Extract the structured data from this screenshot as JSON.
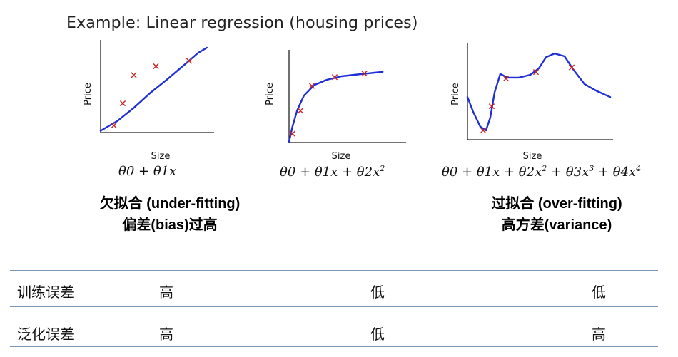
{
  "title": "Example: Linear regression (housing prices)",
  "chart_data": [
    {
      "type": "scatter",
      "fit": "linear",
      "xlabel": "Size",
      "ylabel": "Price",
      "xlim": [
        0,
        10
      ],
      "ylim": [
        0,
        10
      ],
      "points": [
        [
          1.2,
          0.8
        ],
        [
          2.0,
          3.3
        ],
        [
          3.0,
          6.5
        ],
        [
          5.0,
          7.5
        ],
        [
          8.0,
          8.1
        ]
      ],
      "curve": [
        [
          0.0,
          0.2
        ],
        [
          1.5,
          1.3
        ],
        [
          3.0,
          2.8
        ],
        [
          4.5,
          4.5
        ],
        [
          6.0,
          6.0
        ],
        [
          7.5,
          7.6
        ],
        [
          8.8,
          9.0
        ],
        [
          9.6,
          9.6
        ]
      ],
      "formula": "θ0 + θ1x"
    },
    {
      "type": "scatter",
      "fit": "quadratic",
      "xlabel": "Size",
      "ylabel": "Price",
      "xlim": [
        0,
        10
      ],
      "ylim": [
        0,
        10
      ],
      "points": [
        [
          0.3,
          1.0
        ],
        [
          1.0,
          3.6
        ],
        [
          2.0,
          6.4
        ],
        [
          4.0,
          7.4
        ],
        [
          6.6,
          7.8
        ]
      ],
      "curve": [
        [
          0.0,
          0.1
        ],
        [
          0.3,
          1.8
        ],
        [
          0.7,
          3.6
        ],
        [
          1.3,
          5.3
        ],
        [
          2.2,
          6.5
        ],
        [
          3.3,
          7.1
        ],
        [
          4.6,
          7.5
        ],
        [
          6.0,
          7.7
        ],
        [
          7.5,
          7.9
        ],
        [
          8.2,
          8.0
        ]
      ],
      "formula": "θ0 + θ1x + θ2x^2"
    },
    {
      "type": "scatter",
      "fit": "quartic",
      "xlabel": "Size",
      "ylabel": "Price",
      "xlim": [
        0,
        10
      ],
      "ylim": [
        0,
        10
      ],
      "points": [
        [
          1.1,
          1.0
        ],
        [
          1.7,
          3.6
        ],
        [
          2.7,
          6.6
        ],
        [
          4.8,
          7.3
        ],
        [
          7.3,
          7.8
        ]
      ],
      "curve": [
        [
          0.0,
          4.6
        ],
        [
          0.4,
          3.0
        ],
        [
          0.9,
          1.4
        ],
        [
          1.3,
          1.0
        ],
        [
          1.6,
          2.4
        ],
        [
          1.9,
          5.1
        ],
        [
          2.3,
          7.1
        ],
        [
          2.8,
          6.7
        ],
        [
          3.6,
          6.7
        ],
        [
          4.4,
          7.0
        ],
        [
          5.0,
          7.7
        ],
        [
          5.5,
          8.9
        ],
        [
          6.1,
          9.3
        ],
        [
          6.8,
          9.0
        ],
        [
          7.4,
          7.6
        ],
        [
          8.2,
          6.0
        ],
        [
          9.0,
          5.3
        ],
        [
          10.0,
          4.6
        ]
      ],
      "formula": "θ0 + θ1x + θ2x^2 + θ3x^3 + θ4x^4"
    }
  ],
  "captions": {
    "under_line1": "欠拟合 (under-fitting)",
    "under_line2": "偏差(bias)过高",
    "over_line1": "过拟合 (over-fitting)",
    "over_line2": "高方差(variance)"
  },
  "table": {
    "rows": [
      {
        "label": "训练误差",
        "values": [
          "高",
          "低",
          "低"
        ]
      },
      {
        "label": "泛化误差",
        "values": [
          "高",
          "低",
          "高"
        ]
      }
    ]
  },
  "colors": {
    "curve": "#1f2fd6",
    "marker": "#cc2222",
    "axis": "#222222",
    "rule": "#7a96b0"
  }
}
